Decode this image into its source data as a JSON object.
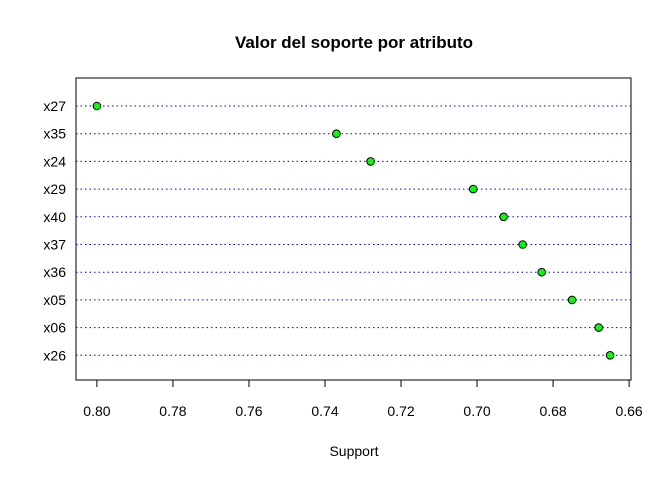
{
  "chart_data": {
    "type": "scatter",
    "title": "Valor del soporte por atributo",
    "xlabel": "Support",
    "ylabel": "",
    "xlim": [
      0.8055,
      0.6595
    ],
    "x_reversed": true,
    "x_ticks": [
      "0.80",
      "0.78",
      "0.76",
      "0.74",
      "0.72",
      "0.70",
      "0.68",
      "0.66"
    ],
    "categories": [
      "x27",
      "x35",
      "x24",
      "x29",
      "x40",
      "x37",
      "x36",
      "x05",
      "x06",
      "x26"
    ],
    "values": [
      0.8,
      0.737,
      0.728,
      0.701,
      0.693,
      0.688,
      0.683,
      0.675,
      0.668,
      0.665
    ],
    "point_color": "#00ff00",
    "point_border": "#000000",
    "guide_line_color": "#0000ff",
    "guide_line_style": "dotted",
    "grid": false,
    "legend": "none"
  }
}
